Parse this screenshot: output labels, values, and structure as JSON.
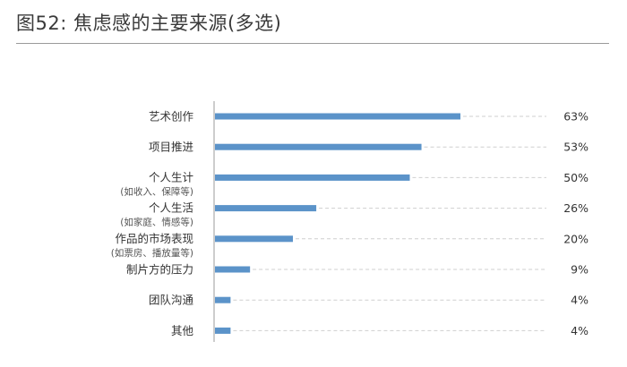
{
  "header": {
    "title": "图52: 焦虑感的主要来源(多选)"
  },
  "chart_data": {
    "type": "bar",
    "orientation": "horizontal",
    "title": "图52: 焦虑感的主要来源(多选)",
    "xlim": [
      0,
      100
    ],
    "value_suffix": "%",
    "grid": false,
    "guide_lines": "dashed",
    "colors": {
      "bar": "#5b93c9",
      "axis": "#9b9b9b",
      "guide": "#cfcfcf",
      "text": "#333333",
      "subtext": "#555555"
    },
    "categories": [
      {
        "label": "艺术创作",
        "sublabel": "",
        "value": 63,
        "value_label": "63%"
      },
      {
        "label": "项目推进",
        "sublabel": "",
        "value": 53,
        "value_label": "53%"
      },
      {
        "label": "个人生计",
        "sublabel": "(如收入、保障等)",
        "value": 50,
        "value_label": "50%"
      },
      {
        "label": "个人生活",
        "sublabel": "(如家庭、情感等)",
        "value": 26,
        "value_label": "26%"
      },
      {
        "label": "作品的市场表现",
        "sublabel": "(如票房、播放量等)",
        "value": 20,
        "value_label": "20%"
      },
      {
        "label": "制片方的压力",
        "sublabel": "",
        "value": 9,
        "value_label": "9%"
      },
      {
        "label": "团队沟通",
        "sublabel": "",
        "value": 4,
        "value_label": "4%"
      },
      {
        "label": "其他",
        "sublabel": "",
        "value": 4,
        "value_label": "4%"
      }
    ]
  }
}
